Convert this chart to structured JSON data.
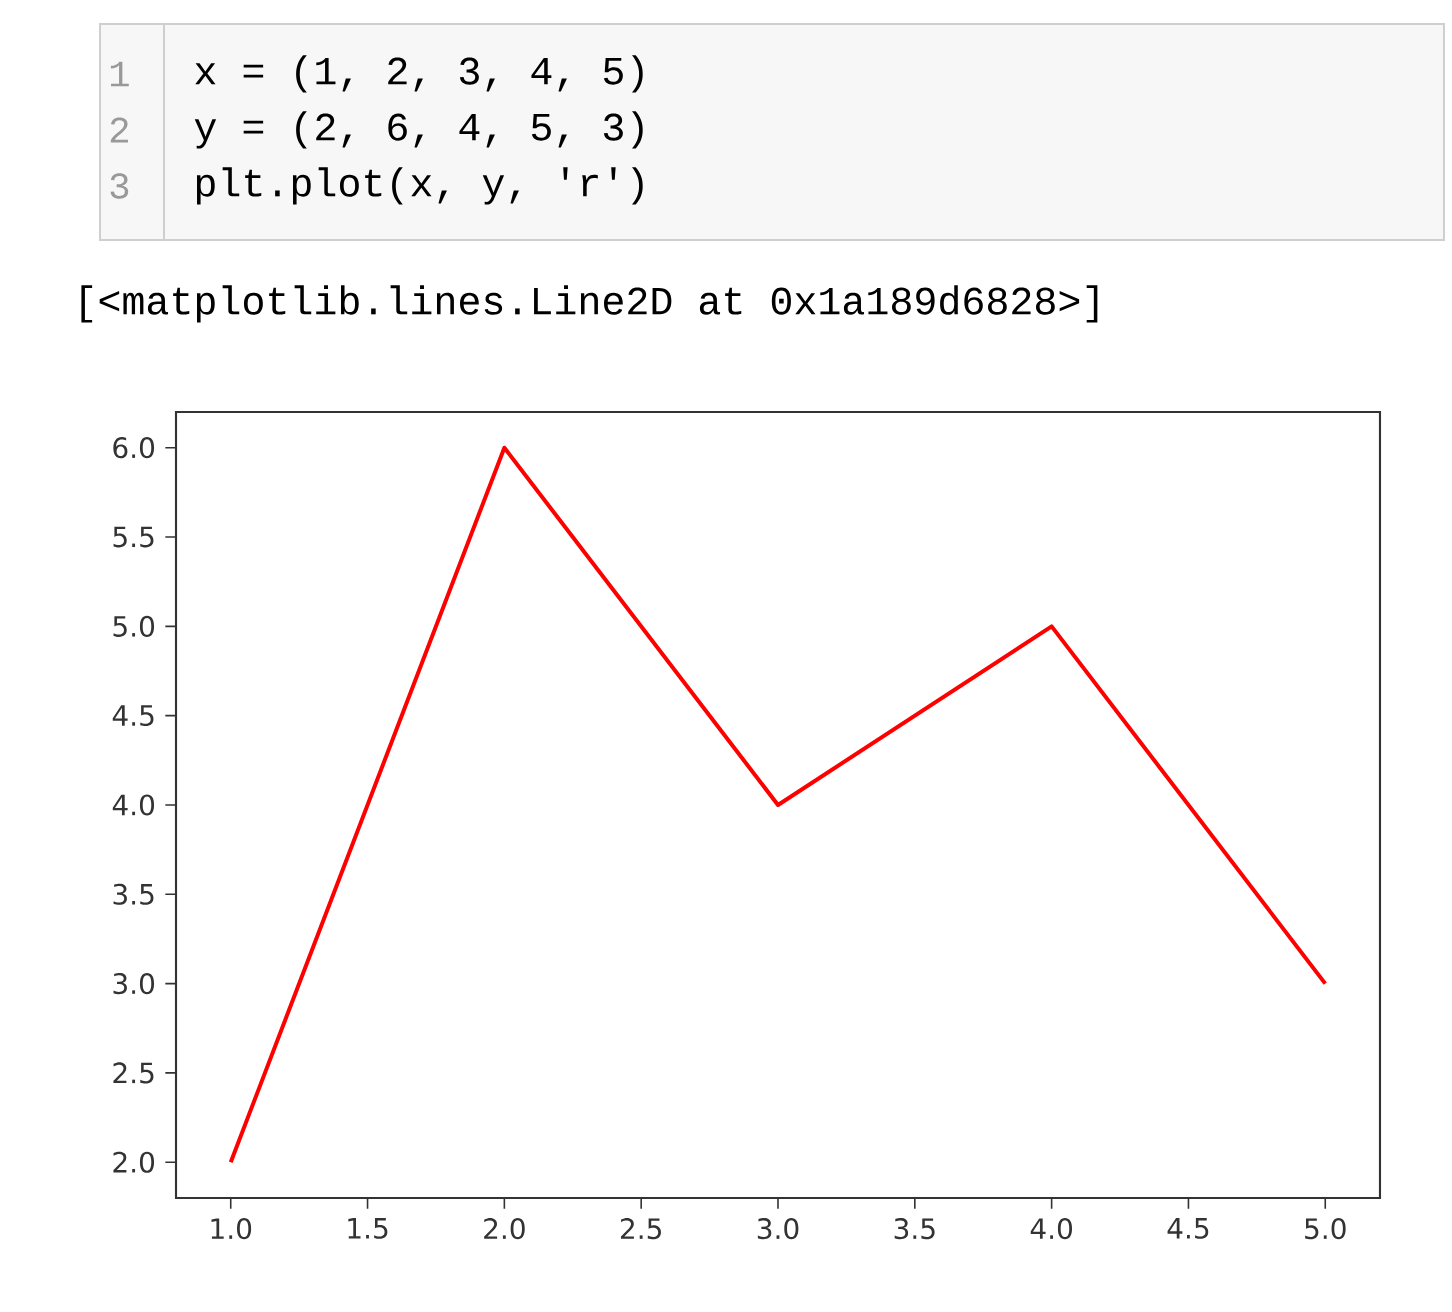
{
  "chart_data": {
    "type": "line",
    "x": [
      1,
      2,
      3,
      4,
      5
    ],
    "series": [
      {
        "color": "#ff0000",
        "values": [
          2,
          6,
          4,
          5,
          3
        ]
      }
    ],
    "xlim": [
      0.8,
      5.2
    ],
    "ylim": [
      1.8,
      6.2
    ],
    "xticks": [
      {
        "value": 1,
        "label": "1.0"
      },
      {
        "value": 1.5,
        "label": "1.5"
      },
      {
        "value": 2,
        "label": "2.0"
      },
      {
        "value": 2.5,
        "label": "2.5"
      },
      {
        "value": 3,
        "label": "3.0"
      },
      {
        "value": 3.5,
        "label": "3.5"
      },
      {
        "value": 4,
        "label": "4.0"
      },
      {
        "value": 4.5,
        "label": "4.5"
      },
      {
        "value": 5,
        "label": "5.0"
      }
    ],
    "yticks": [
      {
        "value": 2,
        "label": "2.0"
      },
      {
        "value": 2.5,
        "label": "2.5"
      },
      {
        "value": 3,
        "label": "3.0"
      },
      {
        "value": 3.5,
        "label": "3.5"
      },
      {
        "value": 4,
        "label": "4.0"
      },
      {
        "value": 4.5,
        "label": "4.5"
      },
      {
        "value": 5,
        "label": "5.0"
      },
      {
        "value": 5.5,
        "label": "5.5"
      },
      {
        "value": 6,
        "label": "6.0"
      }
    ],
    "grid": false,
    "line_style": "solid",
    "annotations": [
      "1",
      "x = (1, 2, 3, 4, 5)",
      "2",
      "y = (2, 6, 4, 5, 3)",
      "3",
      "plt.plot(x, y, 'r')",
      "[<matplotlib.lines.Line2D at 0x1a189d6828>]"
    ]
  }
}
